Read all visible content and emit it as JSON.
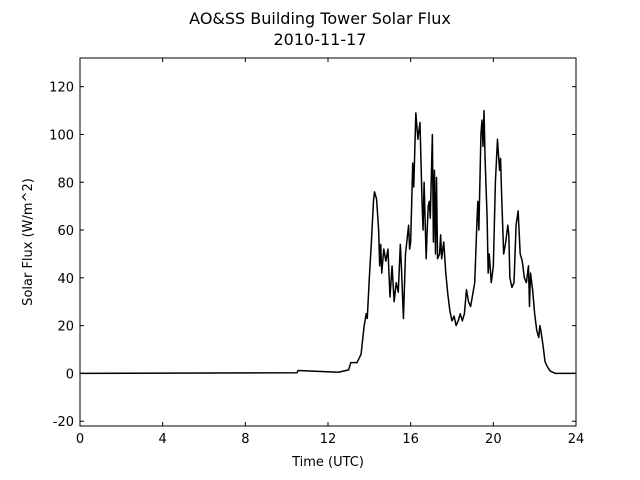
{
  "chart_data": {
    "type": "line",
    "title": "AO&SS Building Tower Solar Flux",
    "subtitle": "2010-11-17",
    "x_label": "Time (UTC)",
    "y_label": "Solar Flux (W/m^2)",
    "xlim": [
      0,
      24
    ],
    "xticks": [
      0,
      4,
      8,
      12,
      16,
      20,
      24
    ],
    "ylim": [
      -22,
      132
    ],
    "yticks": [
      -20,
      0,
      20,
      40,
      60,
      80,
      100,
      120
    ],
    "grid": false,
    "series": [
      {
        "name": "Solar Flux",
        "color": "#000000",
        "x": [
          0,
          10.5,
          10.55,
          12.5,
          13.0,
          13.1,
          13.4,
          13.6,
          13.75,
          13.85,
          13.9,
          14.0,
          14.1,
          14.2,
          14.25,
          14.35,
          14.45,
          14.5,
          14.55,
          14.6,
          14.7,
          14.8,
          14.9,
          15.0,
          15.1,
          15.2,
          15.3,
          15.4,
          15.5,
          15.55,
          15.65,
          15.75,
          15.85,
          15.9,
          15.95,
          16.0,
          16.1,
          16.15,
          16.25,
          16.35,
          16.45,
          16.55,
          16.6,
          16.65,
          16.75,
          16.8,
          16.85,
          16.9,
          16.95,
          17.05,
          17.1,
          17.15,
          17.2,
          17.25,
          17.3,
          17.4,
          17.45,
          17.5,
          17.6,
          17.7,
          17.8,
          17.9,
          18.0,
          18.1,
          18.2,
          18.3,
          18.4,
          18.5,
          18.6,
          18.7,
          18.8,
          18.9,
          19.0,
          19.1,
          19.2,
          19.25,
          19.3,
          19.4,
          19.45,
          19.5,
          19.55,
          19.6,
          19.7,
          19.75,
          19.8,
          19.9,
          20.0,
          20.1,
          20.2,
          20.3,
          20.35,
          20.4,
          20.5,
          20.6,
          20.7,
          20.75,
          20.8,
          20.9,
          21.0,
          21.1,
          21.2,
          21.3,
          21.4,
          21.5,
          21.6,
          21.7,
          21.75,
          21.8,
          21.9,
          22.0,
          22.1,
          22.2,
          22.25,
          22.3,
          22.4,
          22.5,
          22.6,
          22.75,
          23.0,
          24.0
        ],
        "values": [
          0,
          0.3,
          1.2,
          0.5,
          1.5,
          4.5,
          4.5,
          8,
          20,
          25,
          23,
          40,
          55,
          72,
          76,
          73,
          60,
          45,
          54,
          42,
          52,
          47,
          52,
          32,
          45,
          30,
          38,
          34,
          54,
          45,
          23,
          50,
          58,
          62,
          52,
          55,
          88,
          78,
          109,
          98,
          105,
          72,
          60,
          80,
          48,
          60,
          70,
          72,
          65,
          100,
          55,
          85,
          50,
          82,
          48,
          50,
          58,
          48,
          55,
          42,
          33,
          26,
          22,
          24,
          20,
          22,
          25,
          22,
          25,
          35,
          30,
          28,
          33,
          38,
          62,
          72,
          60,
          100,
          106,
          95,
          110,
          90,
          65,
          42,
          50,
          38,
          45,
          80,
          98,
          85,
          90,
          75,
          50,
          55,
          62,
          58,
          40,
          36,
          38,
          62,
          68,
          50,
          47,
          40,
          38,
          45,
          28,
          42,
          35,
          25,
          18,
          15,
          20,
          18,
          12,
          5,
          3,
          1,
          0,
          0
        ]
      }
    ]
  }
}
